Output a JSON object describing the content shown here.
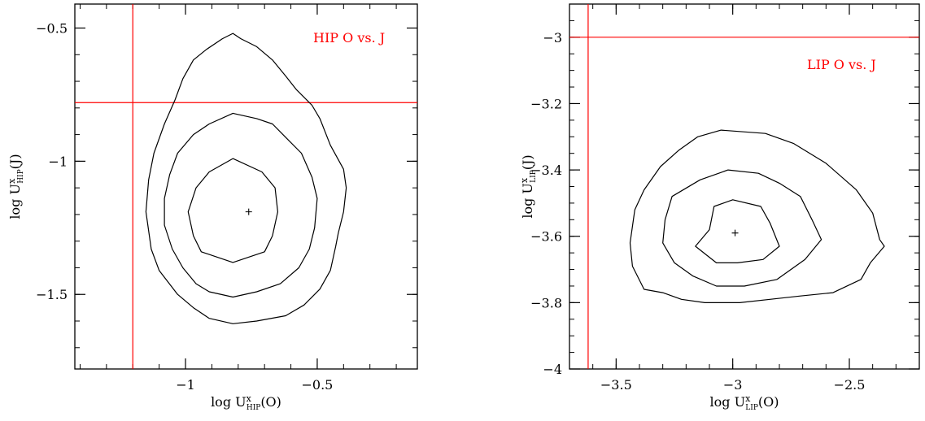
{
  "chart_data": [
    {
      "type": "contour",
      "annotation": "HIP O vs. J",
      "xlabel_prefix": "log U",
      "xlabel_sup": "x",
      "xlabel_sub": "HIP",
      "xlabel_suffix": "(O)",
      "ylabel_prefix": "log U",
      "ylabel_sup": "x",
      "ylabel_sub": "HIP",
      "ylabel_suffix": "(J)",
      "xlim": [
        -1.42,
        -0.12
      ],
      "ylim": [
        -1.78,
        -0.41
      ],
      "x_ticks": [
        -1,
        -0.5
      ],
      "x_tick_labels": [
        "−1",
        "−0.5"
      ],
      "y_ticks": [
        -0.5,
        -1,
        -1.5
      ],
      "y_tick_labels": [
        "−0.5",
        "−1",
        "−1.5"
      ],
      "x_minor_step": 0.1,
      "y_minor_step": 0.1,
      "ref_lines": {
        "x": -1.2,
        "y": -0.78,
        "color": "#ff0000"
      },
      "best_fit": {
        "x": -0.76,
        "y": -1.19
      },
      "contours": [
        [
          [
            -0.82,
            -0.52
          ],
          [
            -0.79,
            -0.54
          ],
          [
            -0.73,
            -0.57
          ],
          [
            -0.67,
            -0.62
          ],
          [
            -0.62,
            -0.68
          ],
          [
            -0.58,
            -0.73
          ],
          [
            -0.52,
            -0.79
          ],
          [
            -0.49,
            -0.84
          ],
          [
            -0.45,
            -0.94
          ],
          [
            -0.4,
            -1.03
          ],
          [
            -0.39,
            -1.1
          ],
          [
            -0.4,
            -1.19
          ],
          [
            -0.42,
            -1.27
          ],
          [
            -0.43,
            -1.32
          ],
          [
            -0.45,
            -1.41
          ],
          [
            -0.49,
            -1.48
          ],
          [
            -0.55,
            -1.54
          ],
          [
            -0.62,
            -1.58
          ],
          [
            -0.73,
            -1.6
          ],
          [
            -0.82,
            -1.61
          ],
          [
            -0.91,
            -1.59
          ],
          [
            -0.97,
            -1.55
          ],
          [
            -1.03,
            -1.5
          ],
          [
            -1.1,
            -1.41
          ],
          [
            -1.13,
            -1.33
          ],
          [
            -1.15,
            -1.19
          ],
          [
            -1.14,
            -1.07
          ],
          [
            -1.12,
            -0.97
          ],
          [
            -1.08,
            -0.86
          ],
          [
            -1.04,
            -0.77
          ],
          [
            -1.01,
            -0.69
          ],
          [
            -0.97,
            -0.62
          ],
          [
            -0.92,
            -0.58
          ],
          [
            -0.86,
            -0.54
          ],
          [
            -0.82,
            -0.52
          ]
        ],
        [
          [
            -0.82,
            -0.82
          ],
          [
            -0.73,
            -0.84
          ],
          [
            -0.67,
            -0.86
          ],
          [
            -0.62,
            -0.91
          ],
          [
            -0.56,
            -0.97
          ],
          [
            -0.52,
            -1.06
          ],
          [
            -0.5,
            -1.14
          ],
          [
            -0.51,
            -1.25
          ],
          [
            -0.53,
            -1.33
          ],
          [
            -0.57,
            -1.4
          ],
          [
            -0.64,
            -1.46
          ],
          [
            -0.73,
            -1.49
          ],
          [
            -0.82,
            -1.51
          ],
          [
            -0.91,
            -1.49
          ],
          [
            -0.96,
            -1.46
          ],
          [
            -1.01,
            -1.4
          ],
          [
            -1.05,
            -1.33
          ],
          [
            -1.08,
            -1.24
          ],
          [
            -1.08,
            -1.14
          ],
          [
            -1.06,
            -1.05
          ],
          [
            -1.03,
            -0.97
          ],
          [
            -0.97,
            -0.9
          ],
          [
            -0.91,
            -0.86
          ],
          [
            -0.82,
            -0.82
          ]
        ],
        [
          [
            -0.82,
            -0.99
          ],
          [
            -0.71,
            -1.04
          ],
          [
            -0.66,
            -1.1
          ],
          [
            -0.65,
            -1.19
          ],
          [
            -0.67,
            -1.28
          ],
          [
            -0.7,
            -1.34
          ],
          [
            -0.82,
            -1.38
          ],
          [
            -0.94,
            -1.34
          ],
          [
            -0.97,
            -1.28
          ],
          [
            -0.99,
            -1.19
          ],
          [
            -0.96,
            -1.1
          ],
          [
            -0.91,
            -1.04
          ],
          [
            -0.82,
            -0.99
          ]
        ]
      ]
    },
    {
      "type": "contour",
      "annotation": "LIP O vs. J",
      "xlabel_prefix": "log U",
      "xlabel_sup": "x",
      "xlabel_sub": "LIP",
      "xlabel_suffix": "(O)",
      "ylabel_prefix": "log U",
      "ylabel_sup": "x",
      "ylabel_sub": "LIP",
      "ylabel_suffix": "(J)",
      "xlim": [
        -3.7,
        -2.2
      ],
      "ylim": [
        -4.0,
        -2.9
      ],
      "x_ticks": [
        -3.5,
        -3,
        -2.5
      ],
      "x_tick_labels": [
        "−3.5",
        "−3",
        "−2.5"
      ],
      "y_ticks": [
        -3,
        -3.2,
        -3.4,
        -3.6,
        -3.8,
        -4
      ],
      "y_tick_labels": [
        "−3",
        "−3.2",
        "−3.4",
        "−3.6",
        "−3.8",
        "−4"
      ],
      "x_minor_step": 0.1,
      "y_minor_step": 0.05,
      "ref_lines": {
        "x": -3.62,
        "y": -3.0,
        "color": "#ff0000"
      },
      "best_fit": {
        "x": -2.99,
        "y": -3.59
      },
      "contours": [
        [
          [
            -3.05,
            -3.28
          ],
          [
            -2.86,
            -3.29
          ],
          [
            -2.74,
            -3.32
          ],
          [
            -2.6,
            -3.38
          ],
          [
            -2.47,
            -3.46
          ],
          [
            -2.4,
            -3.53
          ],
          [
            -2.37,
            -3.61
          ],
          [
            -2.35,
            -3.63
          ],
          [
            -2.41,
            -3.68
          ],
          [
            -2.45,
            -3.73
          ],
          [
            -2.57,
            -3.77
          ],
          [
            -2.71,
            -3.78
          ],
          [
            -2.84,
            -3.79
          ],
          [
            -2.97,
            -3.8
          ],
          [
            -3.12,
            -3.8
          ],
          [
            -3.22,
            -3.79
          ],
          [
            -3.3,
            -3.77
          ],
          [
            -3.38,
            -3.76
          ],
          [
            -3.43,
            -3.69
          ],
          [
            -3.44,
            -3.62
          ],
          [
            -3.42,
            -3.52
          ],
          [
            -3.38,
            -3.46
          ],
          [
            -3.31,
            -3.39
          ],
          [
            -3.23,
            -3.34
          ],
          [
            -3.15,
            -3.3
          ],
          [
            -3.05,
            -3.28
          ]
        ],
        [
          [
            -3.02,
            -3.4
          ],
          [
            -2.89,
            -3.41
          ],
          [
            -2.8,
            -3.44
          ],
          [
            -2.71,
            -3.48
          ],
          [
            -2.66,
            -3.55
          ],
          [
            -2.62,
            -3.61
          ],
          [
            -2.69,
            -3.67
          ],
          [
            -2.81,
            -3.73
          ],
          [
            -2.95,
            -3.75
          ],
          [
            -3.07,
            -3.75
          ],
          [
            -3.17,
            -3.72
          ],
          [
            -3.25,
            -3.68
          ],
          [
            -3.3,
            -3.62
          ],
          [
            -3.29,
            -3.55
          ],
          [
            -3.26,
            -3.48
          ],
          [
            -3.14,
            -3.43
          ],
          [
            -3.02,
            -3.4
          ]
        ],
        [
          [
            -3.0,
            -3.49
          ],
          [
            -2.88,
            -3.51
          ],
          [
            -2.84,
            -3.56
          ],
          [
            -2.8,
            -3.63
          ],
          [
            -2.87,
            -3.67
          ],
          [
            -2.98,
            -3.68
          ],
          [
            -3.07,
            -3.68
          ],
          [
            -3.16,
            -3.63
          ],
          [
            -3.1,
            -3.58
          ],
          [
            -3.08,
            -3.51
          ],
          [
            -3.0,
            -3.49
          ]
        ]
      ]
    }
  ]
}
